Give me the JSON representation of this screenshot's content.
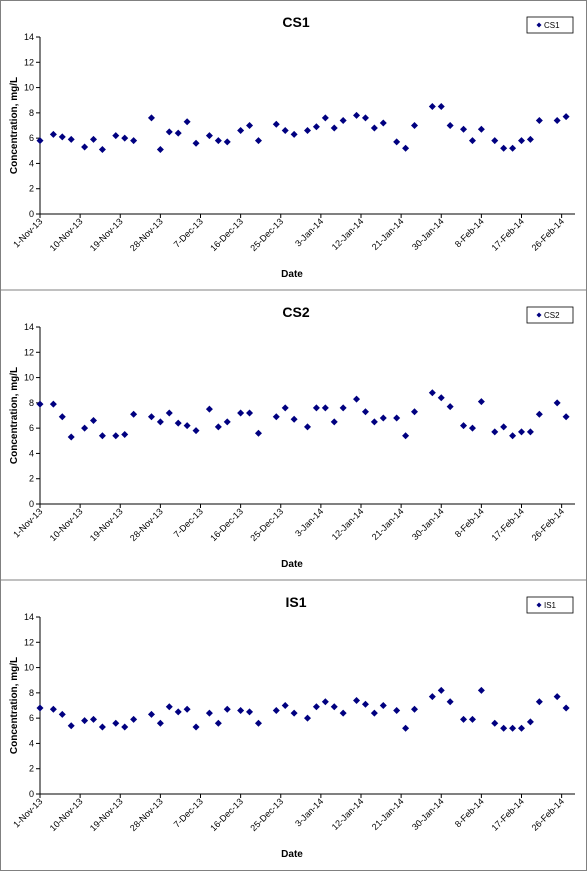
{
  "chart_data": [
    {
      "type": "scatter",
      "title": "CS1",
      "x_label": "Date",
      "y_label": "Concentration, mg/L",
      "legend": "upper right",
      "x": [
        "2013-11-01",
        "2013-11-04",
        "2013-11-06",
        "2013-11-08",
        "2013-11-11",
        "2013-11-13",
        "2013-11-15",
        "2013-11-18",
        "2013-11-20",
        "2013-11-22",
        "2013-11-26",
        "2013-11-28",
        "2013-11-30",
        "2013-12-02",
        "2013-12-04",
        "2013-12-06",
        "2013-12-09",
        "2013-12-11",
        "2013-12-13",
        "2013-12-16",
        "2013-12-18",
        "2013-12-20",
        "2013-12-24",
        "2013-12-26",
        "2013-12-28",
        "2013-12-31",
        "2014-01-02",
        "2014-01-04",
        "2014-01-06",
        "2014-01-08",
        "2014-01-11",
        "2014-01-13",
        "2014-01-15",
        "2014-01-17",
        "2014-01-20",
        "2014-01-22",
        "2014-01-24",
        "2014-01-28",
        "2014-01-30",
        "2014-02-01",
        "2014-02-04",
        "2014-02-06",
        "2014-02-08",
        "2014-02-11",
        "2014-02-13",
        "2014-02-15",
        "2014-02-17",
        "2014-02-19",
        "2014-02-21",
        "2014-02-25",
        "2014-02-27"
      ],
      "series": [
        {
          "name": "CS1",
          "color": "#000080",
          "values": [
            5.8,
            6.3,
            6.1,
            5.9,
            5.3,
            5.9,
            5.1,
            6.2,
            6.0,
            5.8,
            7.6,
            5.1,
            6.5,
            6.4,
            7.3,
            5.6,
            6.2,
            5.8,
            5.7,
            6.6,
            7.0,
            5.8,
            7.1,
            6.6,
            6.3,
            6.6,
            6.9,
            7.6,
            6.8,
            7.4,
            7.8,
            7.6,
            6.8,
            7.2,
            5.7,
            5.2,
            7.0,
            8.5,
            8.5,
            7.0,
            6.7,
            5.8,
            6.7,
            5.8,
            5.2,
            5.2,
            5.8,
            5.9,
            7.4,
            7.4,
            7.7
          ]
        }
      ],
      "xlim": [
        "2013-11-01",
        "2014-03-01"
      ],
      "xticks": [
        {
          "value": "2013-11-01",
          "label": "1-Nov-13"
        },
        {
          "value": "2013-11-10",
          "label": "10-Nov-13"
        },
        {
          "value": "2013-11-19",
          "label": "19-Nov-13"
        },
        {
          "value": "2013-11-28",
          "label": "28-Nov-13"
        },
        {
          "value": "2013-12-07",
          "label": "7-Dec-13"
        },
        {
          "value": "2013-12-16",
          "label": "16-Dec-13"
        },
        {
          "value": "2013-12-25",
          "label": "25-Dec-13"
        },
        {
          "value": "2014-01-03",
          "label": "3-Jan-14"
        },
        {
          "value": "2014-01-12",
          "label": "12-Jan-14"
        },
        {
          "value": "2014-01-21",
          "label": "21-Jan-14"
        },
        {
          "value": "2014-01-30",
          "label": "30-Jan-14"
        },
        {
          "value": "2014-02-08",
          "label": "8-Feb-14"
        },
        {
          "value": "2014-02-17",
          "label": "17-Feb-14"
        },
        {
          "value": "2014-02-26",
          "label": "26-Feb-14"
        }
      ],
      "ylim": [
        0,
        14
      ],
      "yticks": [
        0,
        2,
        4,
        6,
        8,
        10,
        12,
        14
      ]
    },
    {
      "type": "scatter",
      "title": "CS2",
      "x_label": "Date",
      "y_label": "Concentration, mg/L",
      "legend": "upper right",
      "x": [
        "2013-11-01",
        "2013-11-04",
        "2013-11-06",
        "2013-11-08",
        "2013-11-11",
        "2013-11-13",
        "2013-11-15",
        "2013-11-18",
        "2013-11-20",
        "2013-11-22",
        "2013-11-26",
        "2013-11-28",
        "2013-11-30",
        "2013-12-02",
        "2013-12-04",
        "2013-12-06",
        "2013-12-09",
        "2013-12-11",
        "2013-12-13",
        "2013-12-16",
        "2013-12-18",
        "2013-12-20",
        "2013-12-24",
        "2013-12-26",
        "2013-12-28",
        "2013-12-31",
        "2014-01-02",
        "2014-01-04",
        "2014-01-06",
        "2014-01-08",
        "2014-01-11",
        "2014-01-13",
        "2014-01-15",
        "2014-01-17",
        "2014-01-20",
        "2014-01-22",
        "2014-01-24",
        "2014-01-28",
        "2014-01-30",
        "2014-02-01",
        "2014-02-04",
        "2014-02-06",
        "2014-02-08",
        "2014-02-11",
        "2014-02-13",
        "2014-02-15",
        "2014-02-17",
        "2014-02-19",
        "2014-02-21",
        "2014-02-25",
        "2014-02-27"
      ],
      "series": [
        {
          "name": "CS2",
          "color": "#000080",
          "values": [
            7.9,
            7.9,
            6.9,
            5.3,
            6.0,
            6.6,
            5.4,
            5.4,
            5.5,
            7.1,
            6.9,
            6.5,
            7.2,
            6.4,
            6.2,
            5.8,
            7.5,
            6.1,
            6.5,
            7.2,
            7.2,
            5.6,
            6.9,
            7.6,
            6.7,
            6.1,
            7.6,
            7.6,
            6.5,
            7.6,
            8.3,
            7.3,
            6.5,
            6.8,
            6.8,
            5.4,
            7.3,
            8.8,
            8.4,
            7.7,
            6.2,
            6.0,
            8.1,
            5.7,
            6.1,
            5.4,
            5.7,
            5.7,
            7.1,
            8.0,
            6.9
          ]
        }
      ],
      "xlim": [
        "2013-11-01",
        "2014-03-01"
      ],
      "xticks": [
        {
          "value": "2013-11-01",
          "label": "1-Nov-13"
        },
        {
          "value": "2013-11-10",
          "label": "10-Nov-13"
        },
        {
          "value": "2013-11-19",
          "label": "19-Nov-13"
        },
        {
          "value": "2013-11-28",
          "label": "28-Nov-13"
        },
        {
          "value": "2013-12-07",
          "label": "7-Dec-13"
        },
        {
          "value": "2013-12-16",
          "label": "16-Dec-13"
        },
        {
          "value": "2013-12-25",
          "label": "25-Dec-13"
        },
        {
          "value": "2014-01-03",
          "label": "3-Jan-14"
        },
        {
          "value": "2014-01-12",
          "label": "12-Jan-14"
        },
        {
          "value": "2014-01-21",
          "label": "21-Jan-14"
        },
        {
          "value": "2014-01-30",
          "label": "30-Jan-14"
        },
        {
          "value": "2014-02-08",
          "label": "8-Feb-14"
        },
        {
          "value": "2014-02-17",
          "label": "17-Feb-14"
        },
        {
          "value": "2014-02-26",
          "label": "26-Feb-14"
        }
      ],
      "ylim": [
        0,
        14
      ],
      "yticks": [
        0,
        2,
        4,
        6,
        8,
        10,
        12,
        14
      ]
    },
    {
      "type": "scatter",
      "title": "IS1",
      "x_label": "Date",
      "y_label": "Concentration, mg/L",
      "legend": "upper right",
      "x": [
        "2013-11-01",
        "2013-11-04",
        "2013-11-06",
        "2013-11-08",
        "2013-11-11",
        "2013-11-13",
        "2013-11-15",
        "2013-11-18",
        "2013-11-20",
        "2013-11-22",
        "2013-11-26",
        "2013-11-28",
        "2013-11-30",
        "2013-12-02",
        "2013-12-04",
        "2013-12-06",
        "2013-12-09",
        "2013-12-11",
        "2013-12-13",
        "2013-12-16",
        "2013-12-18",
        "2013-12-20",
        "2013-12-24",
        "2013-12-26",
        "2013-12-28",
        "2013-12-31",
        "2014-01-02",
        "2014-01-04",
        "2014-01-06",
        "2014-01-08",
        "2014-01-11",
        "2014-01-13",
        "2014-01-15",
        "2014-01-17",
        "2014-01-20",
        "2014-01-22",
        "2014-01-24",
        "2014-01-28",
        "2014-01-30",
        "2014-02-01",
        "2014-02-04",
        "2014-02-06",
        "2014-02-08",
        "2014-02-11",
        "2014-02-13",
        "2014-02-15",
        "2014-02-17",
        "2014-02-19",
        "2014-02-21",
        "2014-02-25",
        "2014-02-27"
      ],
      "series": [
        {
          "name": "IS1",
          "color": "#000080",
          "values": [
            6.8,
            6.7,
            6.3,
            5.4,
            5.8,
            5.9,
            5.3,
            5.6,
            5.3,
            5.9,
            6.3,
            5.6,
            6.9,
            6.5,
            6.7,
            5.3,
            6.4,
            5.6,
            6.7,
            6.6,
            6.5,
            5.6,
            6.6,
            7.0,
            6.4,
            6.0,
            6.9,
            7.3,
            6.9,
            6.4,
            7.4,
            7.1,
            6.4,
            7.0,
            6.6,
            5.2,
            6.7,
            7.7,
            8.2,
            7.3,
            5.9,
            5.9,
            8.2,
            5.6,
            5.2,
            5.2,
            5.2,
            5.7,
            7.3,
            7.7,
            6.8
          ]
        }
      ],
      "xlim": [
        "2013-11-01",
        "2014-03-01"
      ],
      "xticks": [
        {
          "value": "2013-11-01",
          "label": "1-Nov-13"
        },
        {
          "value": "2013-11-10",
          "label": "10-Nov-13"
        },
        {
          "value": "2013-11-19",
          "label": "19-Nov-13"
        },
        {
          "value": "2013-11-28",
          "label": "28-Nov-13"
        },
        {
          "value": "2013-12-07",
          "label": "7-Dec-13"
        },
        {
          "value": "2013-12-16",
          "label": "16-Dec-13"
        },
        {
          "value": "2013-12-25",
          "label": "25-Dec-13"
        },
        {
          "value": "2014-01-03",
          "label": "3-Jan-14"
        },
        {
          "value": "2014-01-12",
          "label": "12-Jan-14"
        },
        {
          "value": "2014-01-21",
          "label": "21-Jan-14"
        },
        {
          "value": "2014-01-30",
          "label": "30-Jan-14"
        },
        {
          "value": "2014-02-08",
          "label": "8-Feb-14"
        },
        {
          "value": "2014-02-17",
          "label": "17-Feb-14"
        },
        {
          "value": "2014-02-26",
          "label": "26-Feb-14"
        }
      ],
      "ylim": [
        0,
        14
      ],
      "yticks": [
        0,
        2,
        4,
        6,
        8,
        10,
        12,
        14
      ]
    }
  ]
}
